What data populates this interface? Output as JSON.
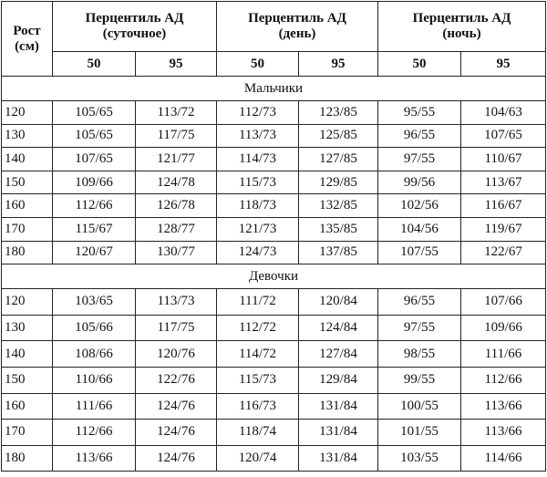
{
  "table": {
    "header": [
      [
        "Рост",
        "(см)"
      ],
      [
        "Перцентиль АД",
        "(суточное)"
      ],
      [
        "Перцентиль АД",
        "(день)"
      ],
      [
        "Перцентиль АД",
        "(ночь)"
      ]
    ],
    "subheader": [
      "50",
      "95",
      "50",
      "95",
      "50",
      "95"
    ],
    "sections": [
      {
        "title": "Мальчики",
        "rows": [
          [
            "120",
            "105/65",
            "113/72",
            "112/73",
            "123/85",
            "95/55",
            "104/63"
          ],
          [
            "130",
            "105/65",
            "117/75",
            "113/73",
            "125/85",
            "96/55",
            "107/65"
          ],
          [
            "140",
            "107/65",
            "121/77",
            "114/73",
            "127/85",
            "97/55",
            "110/67"
          ],
          [
            "150",
            "109/66",
            "124/78",
            "115/73",
            "129/85",
            "99/56",
            "113/67"
          ],
          [
            "160",
            "112/66",
            "126/78",
            "118/73",
            "132/85",
            "102/56",
            "116/67"
          ],
          [
            "170",
            "115/67",
            "128/77",
            "121/73",
            "135/85",
            "104/56",
            "119/67"
          ],
          [
            "180",
            "120/67",
            "130/77",
            "124/73",
            "137/85",
            "107/55",
            "122/67"
          ]
        ]
      },
      {
        "title": "Девочки",
        "rows": [
          [
            "120",
            "103/65",
            "113/73",
            "111/72",
            "120/84",
            "96/55",
            "107/66"
          ],
          [
            "130",
            "105/66",
            "117/75",
            "112/72",
            "124/84",
            "97/55",
            "109/66"
          ],
          [
            "140",
            "108/66",
            "120/76",
            "114/72",
            "127/84",
            "98/55",
            "111/66"
          ],
          [
            "150",
            "110/66",
            "122/76",
            "115/73",
            "129/84",
            "99/55",
            "112/66"
          ],
          [
            "160",
            "111/66",
            "124/76",
            "116/73",
            "131/84",
            "100/55",
            "113/66"
          ],
          [
            "170",
            "112/66",
            "124/76",
            "118/74",
            "131/84",
            "101/55",
            "113/66"
          ],
          [
            "180",
            "113/66",
            "124/76",
            "120/74",
            "131/84",
            "103/55",
            "114/66"
          ]
        ]
      }
    ]
  }
}
